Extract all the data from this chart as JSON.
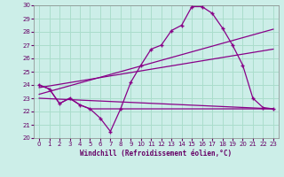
{
  "xlabel": "Windchill (Refroidissement éolien,°C)",
  "background_color": "#cceee8",
  "grid_color": "#aaddcc",
  "line_color": "#880088",
  "xlim": [
    -0.5,
    23.5
  ],
  "ylim": [
    20,
    30
  ],
  "xticks": [
    0,
    1,
    2,
    3,
    4,
    5,
    6,
    7,
    8,
    9,
    10,
    11,
    12,
    13,
    14,
    15,
    16,
    17,
    18,
    19,
    20,
    21,
    22,
    23
  ],
  "yticks": [
    20,
    21,
    22,
    23,
    24,
    25,
    26,
    27,
    28,
    29,
    30
  ],
  "line1_x": [
    0,
    1,
    2,
    3,
    4,
    5,
    6,
    7,
    8,
    9,
    10,
    11,
    12,
    13,
    14,
    15,
    16,
    17,
    18,
    19,
    20,
    21,
    22,
    23
  ],
  "line1_y": [
    24.0,
    23.7,
    22.6,
    23.0,
    22.5,
    22.2,
    21.5,
    20.5,
    22.2,
    24.2,
    25.5,
    26.7,
    27.0,
    28.1,
    28.5,
    29.9,
    29.9,
    29.4,
    28.3,
    27.0,
    25.5,
    23.0,
    22.3,
    22.2
  ],
  "line2_x": [
    0,
    23
  ],
  "line2_y": [
    23.0,
    22.2
  ],
  "line3_x": [
    0,
    23
  ],
  "line3_y": [
    23.3,
    28.2
  ],
  "line4_x": [
    0,
    23
  ],
  "line4_y": [
    23.8,
    26.7
  ],
  "line5_x": [
    0,
    1,
    2,
    3,
    4,
    5,
    6,
    7,
    8,
    9,
    10,
    11,
    12,
    13,
    14,
    15,
    16,
    17,
    18,
    19,
    20,
    21,
    22,
    23
  ],
  "line5_y": [
    24.0,
    23.7,
    22.6,
    23.0,
    22.5,
    22.2,
    22.2,
    22.2,
    22.2,
    22.2,
    22.2,
    22.2,
    22.2,
    22.2,
    22.2,
    22.2,
    22.2,
    22.2,
    22.2,
    22.2,
    22.2,
    22.2,
    22.2,
    22.2
  ]
}
